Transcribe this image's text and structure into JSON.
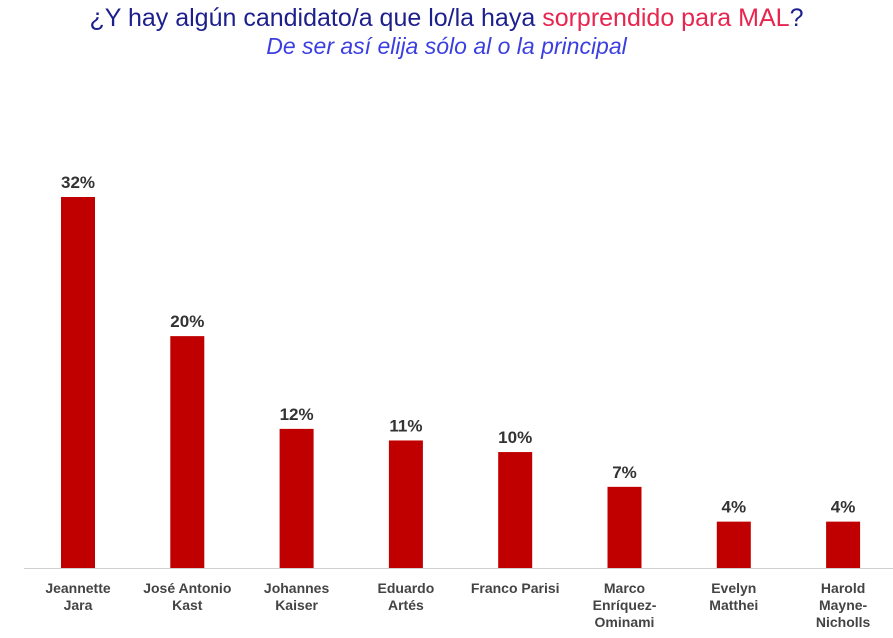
{
  "header": {
    "title_part1": "¿Y hay algún candidato/a que lo/la haya ",
    "title_highlight": "sorprendido para MAL",
    "title_part2": "?",
    "subtitle": "De ser así elija sólo al o la principal"
  },
  "colors": {
    "bar": "#c00000",
    "title": "#1c1f8c",
    "title_highlight": "#e8254f",
    "subtitle": "#3b3fe0"
  },
  "chart_data": {
    "type": "bar",
    "categories": [
      [
        "Jeannette",
        "Jara"
      ],
      [
        "José Antonio",
        "Kast"
      ],
      [
        "Johannes",
        "Kaiser"
      ],
      [
        "Eduardo",
        "Artés"
      ],
      [
        "Franco Parisi"
      ],
      [
        "Marco",
        "Enríquez-",
        "Ominami"
      ],
      [
        "Evelyn",
        "Matthei"
      ],
      [
        "Harold",
        "Mayne-",
        "Nicholls"
      ]
    ],
    "values": [
      32,
      20,
      12,
      11,
      10,
      7,
      4,
      4
    ],
    "value_labels": [
      "32%",
      "20%",
      "12%",
      "11%",
      "10%",
      "7%",
      "4%",
      "4%"
    ],
    "unit": "%",
    "ylim": [
      0,
      32
    ],
    "grid": false,
    "legend": "none"
  }
}
